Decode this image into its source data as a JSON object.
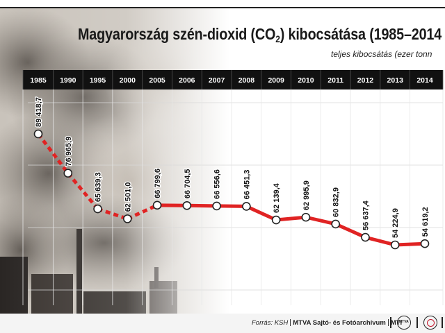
{
  "header": {
    "title_main": "Magyarország szén-dioxid (CO",
    "title_sub": "2",
    "title_end": ") kibocsátása (1985–2014",
    "subtitle": "teljes kibocsátás (ezer tonn"
  },
  "footer": {
    "source_prefix": "Forrás: KSH",
    "source_agency": "MTVA Sajtó- és Fotóarchívum",
    "source_suffix": "MTI",
    "logo_text": "MTVA"
  },
  "colors": {
    "line": "#e02323",
    "year_bar": "#111111",
    "point_fill": "#ffffff"
  },
  "chart_data": {
    "type": "line",
    "title": "Magyarország szén-dioxid (CO2) kibocsátása (1985–2014",
    "subtitle": "teljes kibocsátás (ezer tonn",
    "categories": [
      "1985",
      "1990",
      "1995",
      "2000",
      "2005",
      "2006",
      "2007",
      "2008",
      "2009",
      "2010",
      "2011",
      "2012",
      "2013",
      "2014"
    ],
    "values": [
      89418.7,
      76965.9,
      65639.3,
      62501.0,
      66799.6,
      66704.5,
      66556.6,
      66451.3,
      62139.4,
      62995.9,
      60832.9,
      56637.4,
      54224.9,
      54619.2
    ],
    "value_labels": [
      "89 418,7",
      "76 965,9",
      "65 639,3",
      "62 501,0",
      "66 799,6",
      "66 704,5",
      "66 556,6",
      "66 451,3",
      "62 139,4",
      "62 995,9",
      "60 832,9",
      "56 637,4",
      "54 224,9",
      "54 619,2"
    ],
    "dashed_segment_years": [
      "1985",
      "1990",
      "1995",
      "2000",
      "2005"
    ],
    "x_axis_position": "top",
    "grid": true,
    "legend": "none"
  }
}
